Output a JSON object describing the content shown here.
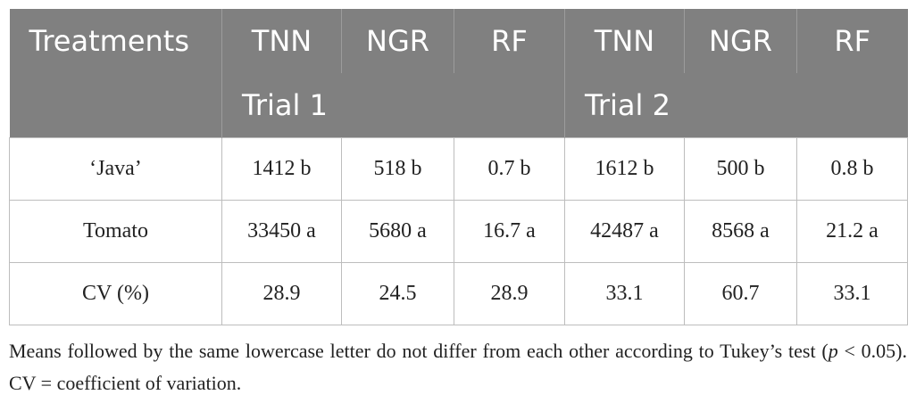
{
  "table": {
    "header": [
      "Treatments",
      "TNN",
      "NGR",
      "RF",
      "TNN",
      "NGR",
      "RF"
    ],
    "groups": [
      "Trial 1",
      "Trial 2"
    ],
    "rows": [
      [
        "‘Java’",
        "1412 b",
        "518 b",
        "0.7 b",
        "1612 b",
        "500 b",
        "0.8 b"
      ],
      [
        "Tomato",
        "33450 a",
        "5680 a",
        "16.7 a",
        "42487 a",
        "8568 a",
        "21.2 a"
      ],
      [
        "CV (%)",
        "28.9",
        "24.5",
        "28.9",
        "33.1",
        "60.7",
        "33.1"
      ]
    ]
  },
  "footnote": [
    "Means followed by the same lowercase letter do not differ from each other according to Tukey’s test (",
    "p",
    " < 0.05). CV = coefficient of variation."
  ]
}
